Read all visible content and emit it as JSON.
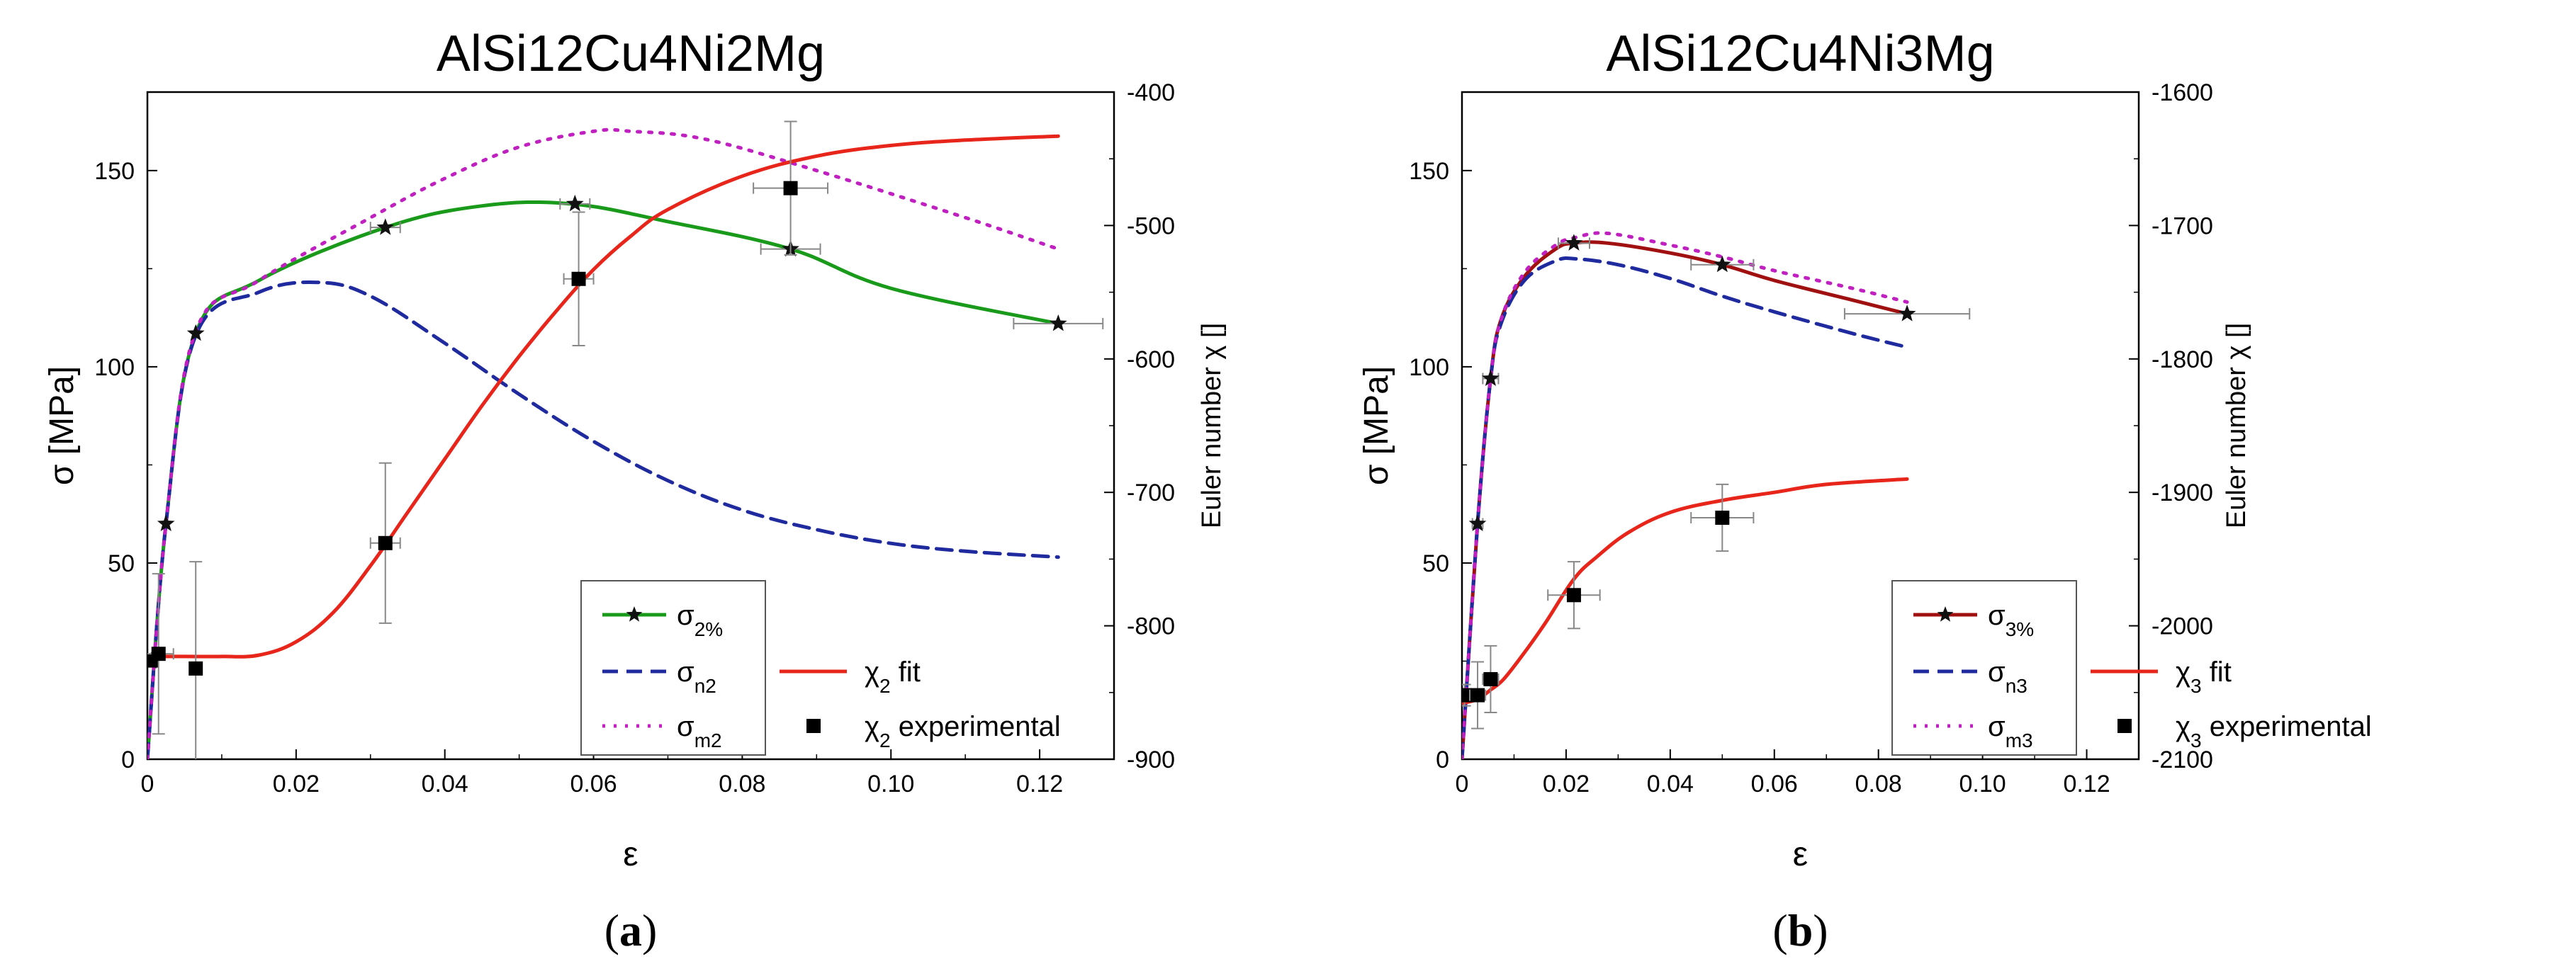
{
  "chart_data": [
    {
      "type": "line",
      "title": "AlSi12Cu4Ni2Mg",
      "caption_letter": "a",
      "xlabel": "ε",
      "ylabel": "σ [MPa]",
      "ylabel_right": "Euler number χ []",
      "xlim": [
        0,
        0.13
      ],
      "ylim": [
        0,
        170
      ],
      "ylim_right": [
        -900,
        -400
      ],
      "x_ticks": [
        0,
        0.02,
        0.04,
        0.06,
        0.08,
        0.1,
        0.12
      ],
      "x_tick_labels": [
        "0",
        "0.02",
        "0.04",
        "0.06",
        "0.08",
        "0.10",
        "0.12"
      ],
      "y_ticks": [
        0,
        50,
        100,
        150
      ],
      "y_tick_labels": [
        "0",
        "50",
        "100",
        "150"
      ],
      "y_right_ticks": [
        -900,
        -800,
        -700,
        -600,
        -500,
        -400
      ],
      "y_right_tick_labels": [
        "-900",
        "-800",
        "-700",
        "-600",
        "-500",
        "-400"
      ],
      "legend": {
        "sigma_main": {
          "base": "σ",
          "sub": "2%"
        },
        "sigma_n": {
          "base": "σ",
          "sub": "n2"
        },
        "sigma_m": {
          "base": "σ",
          "sub": "m2"
        },
        "chi_fit": {
          "base": "χ",
          "sub": "2",
          "suffix": " fit"
        },
        "chi_exp": {
          "base": "χ",
          "sub": "2",
          "suffix": " experimental"
        }
      },
      "series": [
        {
          "name": "σ2%",
          "color": "#1a9a1a",
          "style": "solid",
          "axis": "left",
          "x": [
            0,
            0.0025,
            0.0065,
            0.015,
            0.032,
            0.045,
            0.057,
            0.07,
            0.0865,
            0.1,
            0.1225
          ],
          "y": [
            0,
            60,
            108.5,
            122,
            135.5,
            141,
            141.5,
            137,
            130,
            120,
            111
          ]
        },
        {
          "name": "σn2",
          "color": "#1f2a9e",
          "style": "dashed",
          "axis": "left",
          "x": [
            0,
            0.0025,
            0.0065,
            0.015,
            0.023,
            0.03,
            0.04,
            0.05,
            0.06,
            0.07,
            0.08,
            0.09,
            0.1,
            0.11,
            0.1225
          ],
          "y": [
            0,
            60,
            108,
            119,
            121.5,
            118,
            106,
            93,
            81,
            71,
            63.5,
            58.5,
            55,
            53,
            51.5
          ]
        },
        {
          "name": "σm2",
          "color": "#c020c0",
          "style": "dotted",
          "axis": "left",
          "x": [
            0,
            0.0025,
            0.0065,
            0.015,
            0.03,
            0.04,
            0.05,
            0.06,
            0.065,
            0.075,
            0.09,
            0.11,
            0.1225
          ],
          "y": [
            0,
            60,
            109,
            122,
            138,
            148,
            156,
            160,
            160,
            158,
            150,
            138,
            130
          ]
        },
        {
          "name": "χ2 fit",
          "color": "#e8251a",
          "style": "solid",
          "axis": "right",
          "x": [
            0,
            0.005,
            0.01,
            0.015,
            0.02,
            0.025,
            0.03,
            0.035,
            0.04,
            0.045,
            0.05,
            0.055,
            0.06,
            0.065,
            0.07,
            0.08,
            0.09,
            0.1,
            0.11,
            0.1225
          ],
          "y": [
            -823,
            -823,
            -823,
            -822,
            -812,
            -790,
            -755,
            -715,
            -675,
            -635,
            -598,
            -564,
            -533,
            -508,
            -488,
            -463,
            -448,
            -440,
            -436,
            -433
          ]
        }
      ],
      "experimental_points": {
        "name": "χ2 experimental",
        "axis": "right",
        "x": [
          0.0005,
          0.0015,
          0.0065,
          0.032,
          0.058,
          0.0865
        ],
        "y": [
          -826,
          -821,
          -832,
          -738,
          -540,
          -472
        ],
        "y_err": [
          0,
          60,
          80,
          60,
          50,
          50
        ],
        "x_err": [
          0,
          0.002,
          0,
          0.002,
          0.002,
          0.005
        ]
      },
      "star_markers": {
        "x": [
          0.0005,
          0.0025,
          0.0065,
          0.032,
          0.0575,
          0.0865,
          0.1225
        ],
        "y": [
          25,
          60,
          108.5,
          135.5,
          141.5,
          130,
          111
        ],
        "x_err": [
          0,
          0,
          0,
          0.002,
          0.002,
          0.004,
          0.006
        ]
      }
    },
    {
      "type": "line",
      "title": "AlSi12Cu4Ni3Mg",
      "caption_letter": "b",
      "xlabel": "ε",
      "ylabel": "σ [MPa]",
      "ylabel_right": "Euler number χ []",
      "xlim": [
        0,
        0.13
      ],
      "ylim": [
        0,
        170
      ],
      "ylim_right": [
        -2100,
        -1600
      ],
      "x_ticks": [
        0,
        0.02,
        0.04,
        0.06,
        0.08,
        0.1,
        0.12
      ],
      "x_tick_labels": [
        "0",
        "0.02",
        "0.04",
        "0.06",
        "0.08",
        "0.10",
        "0.12"
      ],
      "y_ticks": [
        0,
        50,
        100,
        150
      ],
      "y_tick_labels": [
        "0",
        "50",
        "100",
        "150"
      ],
      "y_right_ticks": [
        -2100,
        -2000,
        -1900,
        -1800,
        -1700,
        -1600
      ],
      "y_right_tick_labels": [
        "-2100",
        "-2000",
        "-1900",
        "-1800",
        "-1700",
        "-1600"
      ],
      "legend": {
        "sigma_main": {
          "base": "σ",
          "sub": "3%"
        },
        "sigma_n": {
          "base": "σ",
          "sub": "n3"
        },
        "sigma_m": {
          "base": "σ",
          "sub": "m3"
        },
        "chi_fit": {
          "base": "χ",
          "sub": "3",
          "suffix": " fit"
        },
        "chi_exp": {
          "base": "χ",
          "sub": "3",
          "suffix": " experimental"
        }
      },
      "series": [
        {
          "name": "σ3%",
          "color": "#a01010",
          "style": "solid",
          "axis": "left",
          "x": [
            0,
            0.003,
            0.0055,
            0.0075,
            0.012,
            0.018,
            0.0215,
            0.028,
            0.04,
            0.05,
            0.06,
            0.075,
            0.0855
          ],
          "y": [
            0,
            60,
            97,
            112,
            123,
            130,
            131.5,
            131.5,
            129,
            126,
            122,
            117,
            113.5
          ]
        },
        {
          "name": "σn3",
          "color": "#1f2a9e",
          "style": "dashed",
          "axis": "left",
          "x": [
            0,
            0.003,
            0.0055,
            0.0075,
            0.012,
            0.018,
            0.022,
            0.03,
            0.04,
            0.05,
            0.06,
            0.075,
            0.0855
          ],
          "y": [
            0,
            60,
            97,
            111,
            122,
            127,
            127.5,
            126,
            122.5,
            118,
            114,
            108.5,
            105
          ]
        },
        {
          "name": "σm3",
          "color": "#c020c0",
          "style": "dotted",
          "axis": "left",
          "x": [
            0,
            0.003,
            0.0055,
            0.0075,
            0.012,
            0.018,
            0.022,
            0.028,
            0.04,
            0.05,
            0.06,
            0.075,
            0.0855
          ],
          "y": [
            0,
            60,
            97,
            112,
            124,
            131,
            133,
            134,
            131,
            128,
            124.5,
            120,
            116.5
          ]
        },
        {
          "name": "χ3 fit",
          "color": "#e8251a",
          "style": "solid",
          "axis": "right",
          "x": [
            0,
            0.003,
            0.0055,
            0.008,
            0.012,
            0.016,
            0.0215,
            0.026,
            0.032,
            0.04,
            0.05,
            0.06,
            0.07,
            0.0855
          ],
          "y": [
            -2058,
            -2055,
            -2048,
            -2040,
            -2020,
            -1998,
            -1965,
            -1948,
            -1930,
            -1915,
            -1906,
            -1900,
            -1894,
            -1890
          ]
        }
      ],
      "experimental_points": {
        "name": "χ3 experimental",
        "axis": "right",
        "x": [
          0.0005,
          0.003,
          0.0055,
          0.0215,
          0.05
        ],
        "y": [
          -2052,
          -2052,
          -2040,
          -1977,
          -1919
        ],
        "y_err": [
          8,
          25,
          25,
          25,
          25
        ],
        "x_err": [
          0.0005,
          0.0015,
          0.0015,
          0.005,
          0.006
        ]
      },
      "star_markers": {
        "x": [
          0.003,
          0.0055,
          0.0215,
          0.05,
          0.0855
        ],
        "y": [
          60,
          97,
          131.5,
          126,
          113.5
        ],
        "x_err": [
          0.001,
          0.0015,
          0.003,
          0.006,
          0.012
        ]
      }
    }
  ]
}
